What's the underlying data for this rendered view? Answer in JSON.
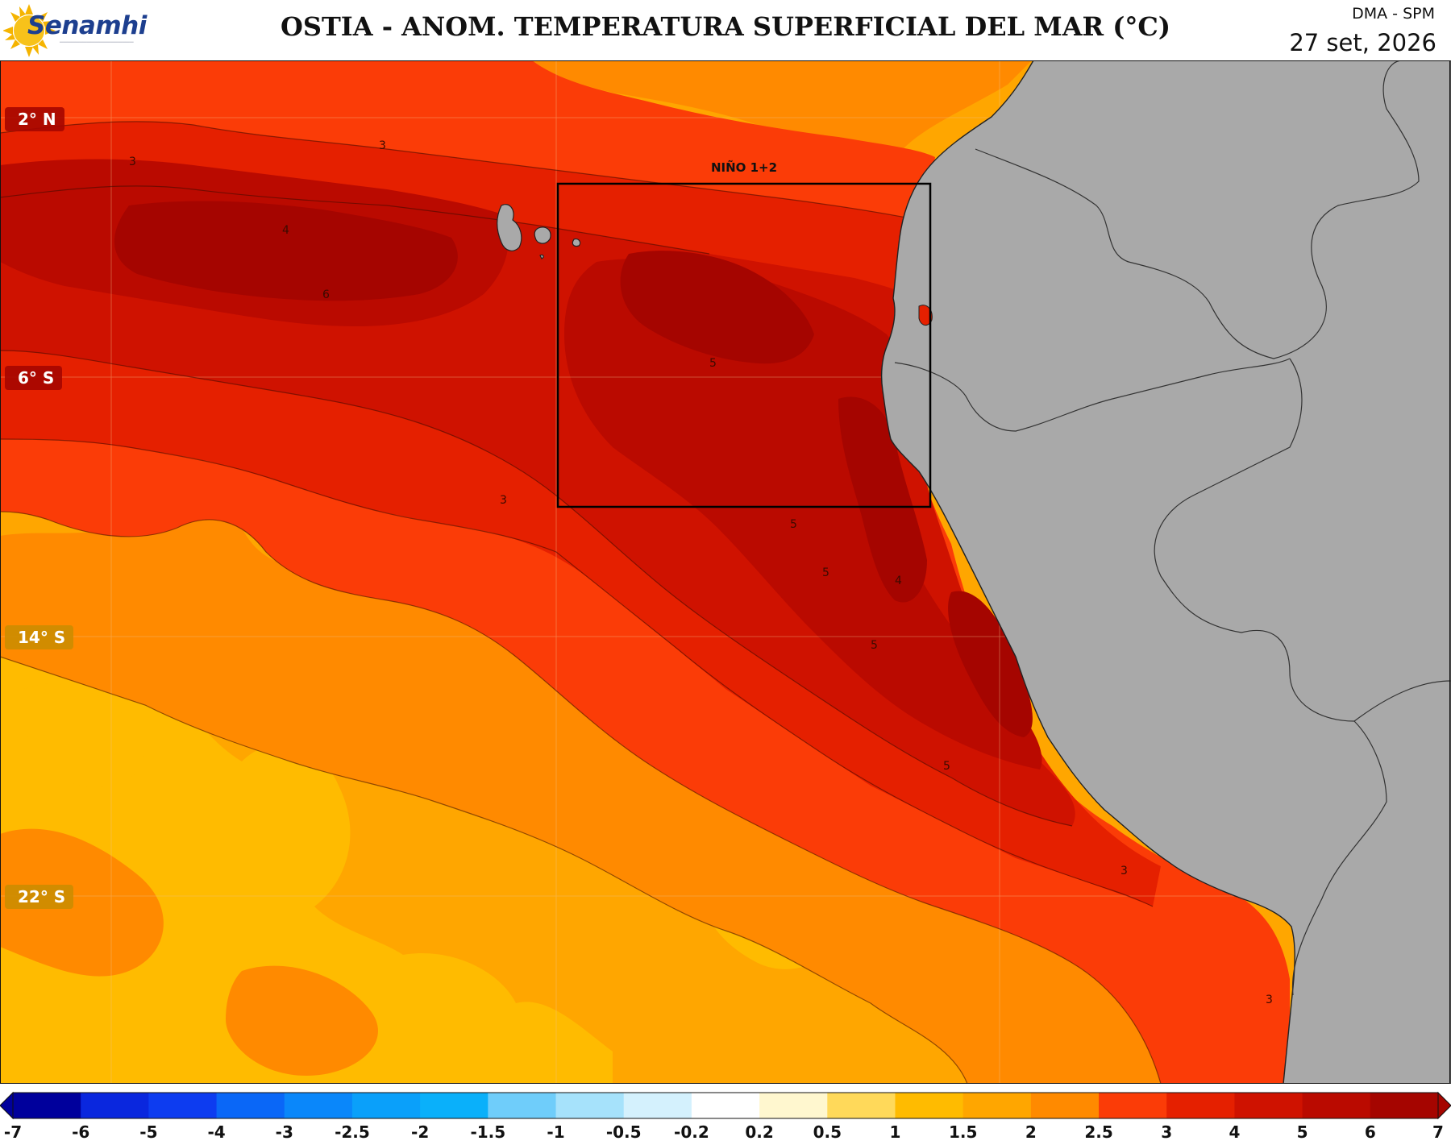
{
  "header": {
    "logo_text": "Senamhi",
    "title": "OSTIA - ANOM. TEMPERATURA SUPERFICIAL DEL MAR (°C)",
    "agency": "DMA - SPM",
    "date": "27 set, 2026"
  },
  "map": {
    "region_label": "NIÑO 1+2",
    "latitude_labels": [
      "2° N",
      "6° S",
      "14° S",
      "22° S"
    ],
    "contour_labels": [
      "3",
      "4",
      "5",
      "6"
    ],
    "colors": {
      "land": "#a9a9a9",
      "grid": "#f2c28a",
      "border": "#222222"
    }
  },
  "colorbar": {
    "ticks": [
      "-7",
      "-6",
      "-5",
      "-4",
      "-3",
      "-2.5",
      "-2",
      "-1.5",
      "-1",
      "-0.5",
      "-0.2",
      "0.2",
      "0.5",
      "1",
      "1.5",
      "2",
      "2.5",
      "3",
      "4",
      "5",
      "6",
      "7"
    ],
    "colors": [
      "#00009c",
      "#0a27de",
      "#0d3cf0",
      "#0a67f7",
      "#0a87fa",
      "#0aa0fa",
      "#0ab0fa",
      "#6fcdfa",
      "#a6e2fb",
      "#d4f1fd",
      "#ffffff",
      "#fff7cf",
      "#ffd95a",
      "#ffbb00",
      "#ffa600",
      "#ff8a00",
      "#fb3c07",
      "#e52000",
      "#cf1200",
      "#ba0a00",
      "#a50500"
    ]
  }
}
